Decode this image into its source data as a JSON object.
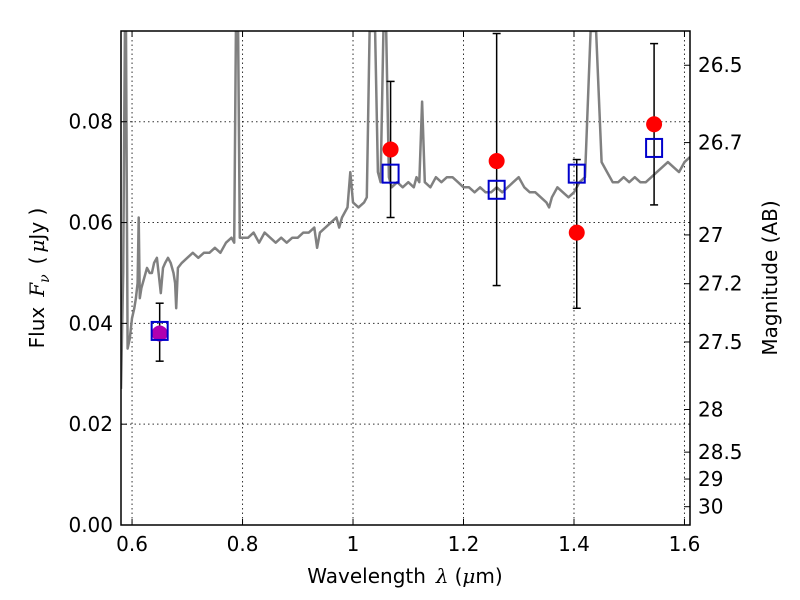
{
  "chart_data": {
    "type": "scatter",
    "title": "",
    "xlabel_parts": [
      "Wavelength",
      "λ",
      "(",
      "μ",
      "m)"
    ],
    "ylabel_parts": [
      "Flux",
      "F",
      "ν",
      "(",
      "μ",
      "Jy )"
    ],
    "y2label": "Magnitude (AB)",
    "xlim": [
      0.58,
      1.61
    ],
    "ylim": [
      0.0,
      0.098
    ],
    "x_ticks": [
      0.6,
      0.8,
      1.0,
      1.2,
      1.4,
      1.6
    ],
    "x_tick_labels": [
      "0.6",
      "0.8",
      "1",
      "1.2",
      "1.4",
      "1.6"
    ],
    "y_ticks": [
      0.0,
      0.02,
      0.04,
      0.06,
      0.08
    ],
    "y_tick_labels": [
      "0.00",
      "0.02",
      "0.04",
      "0.06",
      "0.08"
    ],
    "y2_ticks": [
      26.5,
      26.7,
      27,
      27.2,
      27.5,
      28,
      28.5,
      29,
      30
    ],
    "y2_tick_labels": [
      "26.5",
      "26.7",
      "27",
      "27.2",
      "27.5",
      "28",
      "28.5",
      "29",
      "30"
    ],
    "grid": true,
    "colors": {
      "model": "#808080",
      "observed": "#ff0000",
      "synthetic": "#0000cc",
      "errorbar": "#000000",
      "overlap": "#b000b0"
    },
    "series": [
      {
        "kind": "line",
        "points": [
          [
            0.58,
            0.027
          ],
          [
            0.584,
            0.05
          ],
          [
            0.587,
            0.098
          ],
          [
            0.589,
            0.098
          ],
          [
            0.592,
            0.035
          ],
          [
            0.596,
            0.037
          ],
          [
            0.6,
            0.041
          ],
          [
            0.604,
            0.043
          ],
          [
            0.607,
            0.045
          ],
          [
            0.61,
            0.048
          ],
          [
            0.612,
            0.061
          ],
          [
            0.614,
            0.045
          ],
          [
            0.617,
            0.047
          ],
          [
            0.622,
            0.049
          ],
          [
            0.627,
            0.051
          ],
          [
            0.632,
            0.05
          ],
          [
            0.636,
            0.05
          ],
          [
            0.64,
            0.052
          ],
          [
            0.645,
            0.053
          ],
          [
            0.648,
            0.05
          ],
          [
            0.652,
            0.046
          ],
          [
            0.656,
            0.051
          ],
          [
            0.66,
            0.052
          ],
          [
            0.665,
            0.053
          ],
          [
            0.67,
            0.052
          ],
          [
            0.675,
            0.05
          ],
          [
            0.678,
            0.048
          ],
          [
            0.68,
            0.043
          ],
          [
            0.683,
            0.051
          ],
          [
            0.69,
            0.052
          ],
          [
            0.7,
            0.053
          ],
          [
            0.71,
            0.054
          ],
          [
            0.72,
            0.053
          ],
          [
            0.73,
            0.054
          ],
          [
            0.74,
            0.054
          ],
          [
            0.75,
            0.055
          ],
          [
            0.76,
            0.054
          ],
          [
            0.77,
            0.056
          ],
          [
            0.78,
            0.057
          ],
          [
            0.785,
            0.056
          ],
          [
            0.788,
            0.098
          ],
          [
            0.792,
            0.098
          ],
          [
            0.795,
            0.057
          ],
          [
            0.8,
            0.057
          ],
          [
            0.81,
            0.057
          ],
          [
            0.82,
            0.058
          ],
          [
            0.83,
            0.056
          ],
          [
            0.84,
            0.058
          ],
          [
            0.85,
            0.057
          ],
          [
            0.86,
            0.056
          ],
          [
            0.87,
            0.057
          ],
          [
            0.88,
            0.056
          ],
          [
            0.89,
            0.057
          ],
          [
            0.9,
            0.057
          ],
          [
            0.91,
            0.058
          ],
          [
            0.92,
            0.058
          ],
          [
            0.93,
            0.059
          ],
          [
            0.935,
            0.055
          ],
          [
            0.94,
            0.058
          ],
          [
            0.95,
            0.059
          ],
          [
            0.96,
            0.06
          ],
          [
            0.97,
            0.061
          ],
          [
            0.975,
            0.059
          ],
          [
            0.98,
            0.061
          ],
          [
            0.985,
            0.062
          ],
          [
            0.99,
            0.063
          ],
          [
            0.995,
            0.07
          ],
          [
            1.0,
            0.064
          ],
          [
            1.01,
            0.063
          ],
          [
            1.02,
            0.064
          ],
          [
            1.025,
            0.065
          ],
          [
            1.03,
            0.098
          ],
          [
            1.04,
            0.098
          ],
          [
            1.045,
            0.07
          ],
          [
            1.05,
            0.068
          ],
          [
            1.055,
            0.098
          ],
          [
            1.06,
            0.098
          ],
          [
            1.065,
            0.069
          ],
          [
            1.07,
            0.067
          ],
          [
            1.08,
            0.068
          ],
          [
            1.09,
            0.067
          ],
          [
            1.1,
            0.068
          ],
          [
            1.11,
            0.067
          ],
          [
            1.115,
            0.069
          ],
          [
            1.12,
            0.068
          ],
          [
            1.125,
            0.084
          ],
          [
            1.13,
            0.068
          ],
          [
            1.14,
            0.067
          ],
          [
            1.15,
            0.069
          ],
          [
            1.16,
            0.068
          ],
          [
            1.17,
            0.069
          ],
          [
            1.18,
            0.069
          ],
          [
            1.19,
            0.068
          ],
          [
            1.2,
            0.067
          ],
          [
            1.21,
            0.067
          ],
          [
            1.22,
            0.066
          ],
          [
            1.23,
            0.067
          ],
          [
            1.24,
            0.066
          ],
          [
            1.25,
            0.066
          ],
          [
            1.26,
            0.067
          ],
          [
            1.27,
            0.066
          ],
          [
            1.28,
            0.067
          ],
          [
            1.29,
            0.068
          ],
          [
            1.3,
            0.069
          ],
          [
            1.31,
            0.067
          ],
          [
            1.32,
            0.066
          ],
          [
            1.33,
            0.066
          ],
          [
            1.34,
            0.065
          ],
          [
            1.35,
            0.064
          ],
          [
            1.355,
            0.063
          ],
          [
            1.36,
            0.065
          ],
          [
            1.37,
            0.067
          ],
          [
            1.38,
            0.066
          ],
          [
            1.39,
            0.065
          ],
          [
            1.4,
            0.066
          ],
          [
            1.41,
            0.068
          ],
          [
            1.42,
            0.069
          ],
          [
            1.43,
            0.098
          ],
          [
            1.44,
            0.098
          ],
          [
            1.45,
            0.072
          ],
          [
            1.46,
            0.07
          ],
          [
            1.47,
            0.068
          ],
          [
            1.48,
            0.068
          ],
          [
            1.49,
            0.069
          ],
          [
            1.5,
            0.068
          ],
          [
            1.51,
            0.069
          ],
          [
            1.52,
            0.068
          ],
          [
            1.53,
            0.068
          ],
          [
            1.54,
            0.069
          ],
          [
            1.55,
            0.07
          ],
          [
            1.56,
            0.071
          ],
          [
            1.57,
            0.072
          ],
          [
            1.58,
            0.071
          ],
          [
            1.59,
            0.07
          ],
          [
            1.6,
            0.072
          ],
          [
            1.61,
            0.073
          ]
        ]
      },
      {
        "kind": "points",
        "marker": "circle",
        "points": [
          [
            0.65,
            0.038
          ],
          [
            1.068,
            0.0745
          ],
          [
            1.26,
            0.0722
          ],
          [
            1.405,
            0.058
          ],
          [
            1.545,
            0.0795
          ]
        ]
      },
      {
        "kind": "points",
        "marker": "square",
        "points": [
          [
            0.65,
            0.0385
          ],
          [
            1.068,
            0.0697
          ],
          [
            1.26,
            0.0665
          ],
          [
            1.405,
            0.0697
          ],
          [
            1.545,
            0.0748
          ]
        ]
      },
      {
        "kind": "errorbars",
        "points": [
          [
            0.65,
            0.0325,
            0.044
          ],
          [
            1.068,
            0.061,
            0.088
          ],
          [
            1.26,
            0.0475,
            0.0975
          ],
          [
            1.405,
            0.043,
            0.0725
          ],
          [
            1.545,
            0.0635,
            0.0955
          ]
        ]
      }
    ]
  }
}
